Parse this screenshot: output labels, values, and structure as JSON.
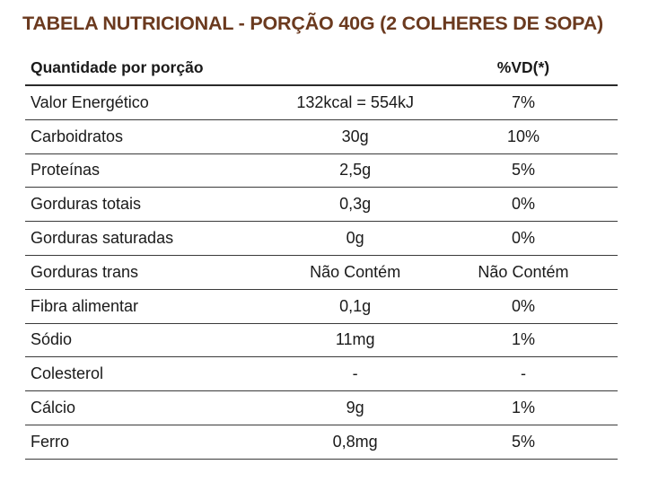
{
  "title": "TABELA NUTRICIONAL - PORÇÃO 40G (2 COLHERES DE SOPA)",
  "header": {
    "col1": "Quantidade por porção",
    "col2": "",
    "col3": "%VD(*)"
  },
  "rows": [
    {
      "nutrient": "Valor Energético",
      "amount": "132kcal = 554kJ",
      "vd": "7%"
    },
    {
      "nutrient": "Carboidratos",
      "amount": "30g",
      "vd": "10%"
    },
    {
      "nutrient": "Proteínas",
      "amount": "2,5g",
      "vd": "5%"
    },
    {
      "nutrient": "Gorduras totais",
      "amount": "0,3g",
      "vd": "0%"
    },
    {
      "nutrient": "Gorduras saturadas",
      "amount": "0g",
      "vd": "0%"
    },
    {
      "nutrient": "Gorduras trans",
      "amount": "Não Contém",
      "vd": "Não Contém"
    },
    {
      "nutrient": "Fibra alimentar",
      "amount": "0,1g",
      "vd": "0%"
    },
    {
      "nutrient": "Sódio",
      "amount": "11mg",
      "vd": "1%"
    },
    {
      "nutrient": "Colesterol",
      "amount": "-",
      "vd": "-"
    },
    {
      "nutrient": "Cálcio",
      "amount": "9g",
      "vd": "1%"
    },
    {
      "nutrient": "Ferro",
      "amount": "0,8mg",
      "vd": "5%"
    }
  ],
  "colors": {
    "title": "#6b3a1f",
    "text": "#1a1a1a",
    "rule": "#3a3a3a"
  }
}
